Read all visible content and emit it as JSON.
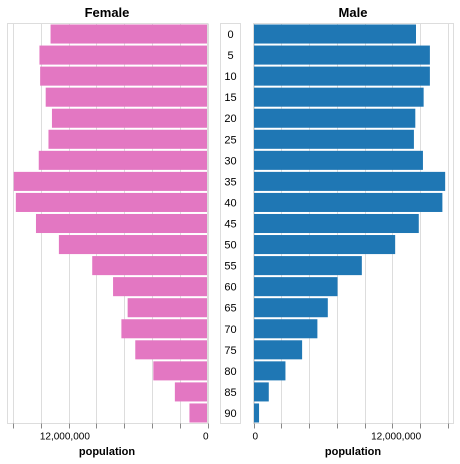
{
  "chart_data": {
    "type": "bar",
    "categories": [
      "0",
      "5",
      "10",
      "15",
      "20",
      "25",
      "30",
      "35",
      "40",
      "45",
      "50",
      "55",
      "60",
      "65",
      "70",
      "75",
      "80",
      "85",
      "90"
    ],
    "female": {
      "title": "Female",
      "xlabel": "population",
      "xlim": [
        0,
        14400000
      ],
      "ticks": [
        {
          "value": 12000000,
          "label": "12,000,000"
        },
        {
          "value": 0,
          "label": "0"
        }
      ],
      "color": "#e377c2",
      "values": [
        11300000,
        12100000,
        12050000,
        11650000,
        11200000,
        11450000,
        12150000,
        13950000,
        13800000,
        12350000,
        10700000,
        8300000,
        6800000,
        5750000,
        6200000,
        5200000,
        3900000,
        2350000,
        1300000
      ]
    },
    "male": {
      "title": "Male",
      "xlabel": "population",
      "xlim": [
        0,
        14400000
      ],
      "ticks": [
        {
          "value": 0,
          "label": "0"
        },
        {
          "value": 12000000,
          "label": "12,000,000"
        }
      ],
      "color": "#1f77b4",
      "values": [
        11700000,
        12700000,
        12700000,
        12250000,
        11650000,
        11550000,
        12200000,
        13800000,
        13600000,
        11900000,
        10200000,
        7800000,
        6050000,
        5350000,
        4600000,
        3500000,
        2300000,
        1100000,
        400000
      ]
    },
    "grid": true
  }
}
